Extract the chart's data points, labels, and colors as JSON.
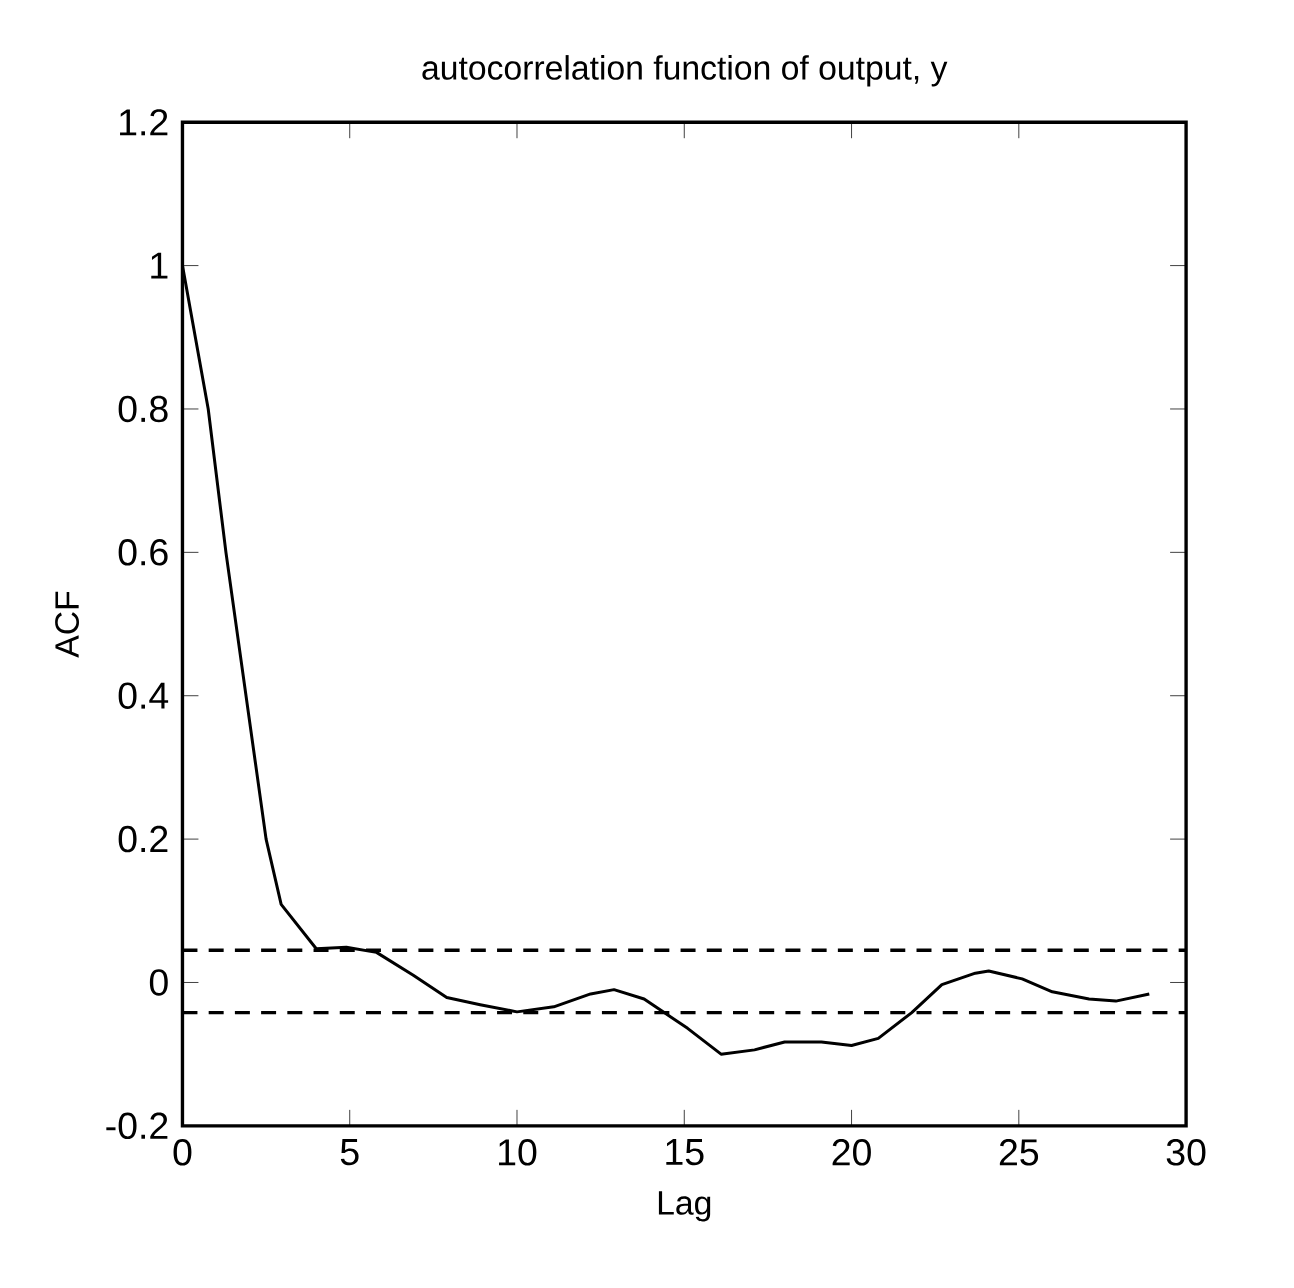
{
  "chart_data": {
    "type": "line",
    "title": "autocorrelation function of output, y",
    "xlabel": "Lag",
    "ylabel": "ACF",
    "x": [
      0,
      0.77,
      1.3,
      1.9,
      2.5,
      2.95,
      4.0,
      4.9,
      5.8,
      6.9,
      7.9,
      8.9,
      10,
      11.1,
      12.2,
      12.9,
      13.8,
      14.4,
      15.1,
      16.1,
      17.1,
      18.0,
      19.1,
      20.0,
      20.8,
      21.8,
      22.7,
      23.7,
      24.1,
      25.1,
      26.0,
      27.1,
      27.9,
      28.9
    ],
    "series": [
      {
        "color": "#000000",
        "values": [
          1.0,
          0.8,
          0.6,
          0.4,
          0.2,
          0.109,
          0.047,
          0.049,
          0.042,
          0.01,
          -0.021,
          -0.031,
          -0.041,
          -0.034,
          -0.016,
          -0.01,
          -0.023,
          -0.042,
          -0.064,
          -0.1,
          -0.094,
          -0.083,
          -0.083,
          -0.088,
          -0.078,
          -0.042,
          -0.003,
          0.013,
          0.016,
          0.005,
          -0.013,
          -0.023,
          -0.026,
          -0.016
        ]
      }
    ],
    "xlim": [
      0,
      30
    ],
    "ylim": [
      -0.2,
      1.2
    ],
    "xticks": [
      0,
      5,
      10,
      15,
      20,
      25,
      30
    ],
    "yticks": [
      -0.2,
      0,
      0.2,
      0.4,
      0.6,
      0.8,
      1,
      1.2
    ],
    "ref_lines": [
      {
        "axis": "y",
        "value": 0.045,
        "color": "#000000",
        "line_style": "dashed"
      },
      {
        "axis": "y",
        "value": -0.042,
        "color": "#000000",
        "line_style": "dashed"
      }
    ],
    "grid": false,
    "marker": "none",
    "line_style": "solid"
  }
}
